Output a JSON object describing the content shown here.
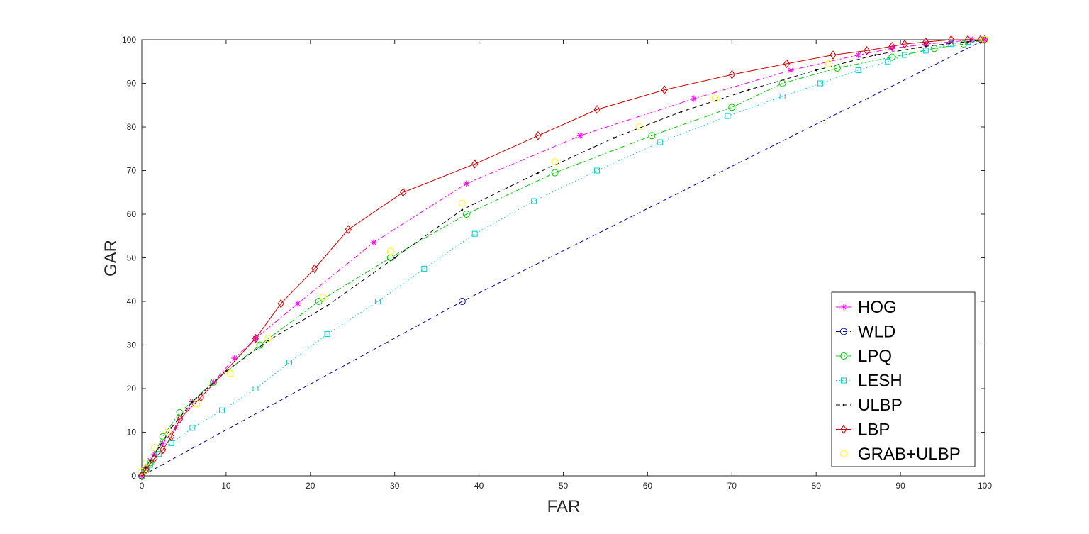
{
  "chart_data": {
    "type": "line",
    "title": "",
    "xlabel": "FAR",
    "ylabel": "GAR",
    "xlim": [
      0,
      100
    ],
    "ylim": [
      0,
      100
    ],
    "xticks": [
      0,
      10,
      20,
      30,
      40,
      50,
      60,
      70,
      80,
      90,
      100
    ],
    "yticks": [
      0,
      10,
      20,
      30,
      40,
      50,
      60,
      70,
      80,
      90,
      100
    ],
    "grid": false,
    "legend": "bottom-right",
    "series": [
      {
        "name": "HOG",
        "color": "#ff00ff",
        "dash": "dashdot",
        "marker": "asterisk",
        "x": [
          0,
          0.5,
          1,
          1.5,
          2.5,
          4,
          6,
          8.5,
          11,
          13.5,
          18.5,
          27.5,
          38.5,
          52,
          65.5,
          77,
          85,
          89,
          93,
          96,
          98.5,
          100
        ],
        "y": [
          0,
          2,
          3.5,
          5,
          7.5,
          11,
          17,
          21.5,
          27,
          31.5,
          39.5,
          53.5,
          67,
          78,
          86.5,
          93,
          96.5,
          98,
          99,
          99.5,
          100,
          100
        ]
      },
      {
        "name": "WLD",
        "color": "#0000aa",
        "dash": "dashed",
        "marker": "circle",
        "x": [
          0,
          38,
          100
        ],
        "y": [
          0,
          40,
          100
        ],
        "marker_x": [
          0,
          38,
          100
        ],
        "marker_y": [
          0,
          40,
          100
        ]
      },
      {
        "name": "LPQ",
        "color": "#00cc00",
        "dash": "dashdot",
        "marker": "circle",
        "x": [
          0,
          0.5,
          1,
          2.5,
          4.5,
          8.5,
          14,
          21,
          29.5,
          38.5,
          49,
          60.5,
          70,
          76,
          82.5,
          89,
          94,
          97.5,
          100
        ],
        "y": [
          0,
          1.5,
          3,
          9,
          14.5,
          21.5,
          30,
          40,
          50,
          60,
          69.5,
          78,
          84.5,
          90,
          93.5,
          96,
          98,
          99,
          100
        ]
      },
      {
        "name": "LESH",
        "color": "#00cccc",
        "dash": "dotted",
        "marker": "square",
        "x": [
          0,
          1,
          2,
          3.5,
          6,
          9.5,
          13.5,
          17.5,
          22,
          28,
          33.5,
          39.5,
          46.5,
          54,
          61.5,
          69.5,
          76,
          80.5,
          85,
          88.5,
          90.5,
          93,
          96,
          98,
          100
        ],
        "y": [
          0,
          2.5,
          5,
          7.5,
          11,
          15,
          20,
          26,
          32.5,
          40,
          47.5,
          55.5,
          63,
          70,
          76.5,
          82.5,
          87,
          90,
          93,
          95,
          96.5,
          97.5,
          99,
          99.5,
          100
        ]
      },
      {
        "name": "ULBP",
        "color": "#000000",
        "dash": "dashed",
        "marker": "point",
        "x": [
          0,
          0.5,
          1,
          2,
          3.5,
          6,
          10,
          15,
          22,
          30,
          38,
          47,
          56,
          64,
          72,
          80,
          87,
          93,
          100
        ],
        "y": [
          0,
          2,
          3.5,
          6.5,
          11,
          17,
          24,
          31,
          39,
          50,
          61,
          69.5,
          77.5,
          83.5,
          88.5,
          93,
          96.5,
          98.5,
          100
        ],
        "marker_x": [
          0.5,
          1,
          2,
          3.5,
          6,
          10,
          15,
          22,
          30,
          38,
          47,
          56,
          64,
          72,
          80,
          87,
          93,
          98
        ],
        "marker_y": [
          2,
          3.5,
          6.5,
          11,
          17,
          24,
          31,
          39,
          50,
          61,
          69.5,
          77.5,
          83.5,
          88.5,
          93,
          96.5,
          98.5,
          99.5
        ]
      },
      {
        "name": "LBP",
        "color": "#cc0000",
        "dash": "solid",
        "marker": "diamond",
        "x": [
          0,
          0.5,
          1.5,
          2.5,
          3.5,
          4.5,
          7,
          13.5,
          16.5,
          20.5,
          24.5,
          31,
          39.5,
          47,
          54,
          62,
          70,
          76.5,
          82,
          86,
          89,
          90.5,
          93,
          96,
          98,
          99.5,
          100
        ],
        "y": [
          0,
          1.5,
          4,
          6,
          9,
          13,
          18,
          31.5,
          39.5,
          47.5,
          56.5,
          65,
          71.5,
          78,
          84,
          88.5,
          92,
          94.5,
          96.5,
          97.5,
          98.5,
          99,
          99.5,
          100,
          100,
          100,
          100
        ]
      },
      {
        "name": "GRAB+ULBP",
        "color": "#ffff00",
        "dash": "none",
        "marker": "circle",
        "x": [
          0,
          0.5,
          1.5,
          3,
          6.5,
          10.5,
          15,
          21.5,
          29.5,
          38,
          49,
          59,
          68,
          81.5,
          100
        ],
        "y": [
          1,
          3,
          6.5,
          10,
          16.5,
          23.5,
          31.5,
          41,
          51.5,
          62.5,
          72,
          80,
          86.5,
          94.5,
          100
        ]
      }
    ]
  }
}
